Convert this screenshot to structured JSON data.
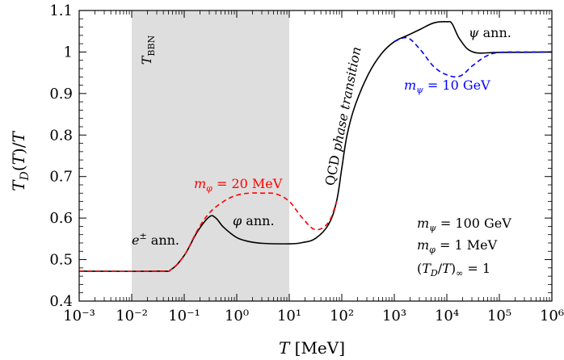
{
  "chart_data": {
    "type": "line",
    "xscale": "log",
    "xlim": [
      0.001,
      1000000
    ],
    "ylim": [
      0.4,
      1.1
    ],
    "xlabel": "T [MeV]",
    "ylabel": "T_D(T)/T",
    "grid": false,
    "xticks": [
      0.001,
      0.01,
      0.1,
      1,
      10,
      100,
      1000,
      10000,
      100000,
      1000000
    ],
    "xtick_labels": [
      "10⁻³",
      "10⁻²",
      "10⁻¹",
      "10⁰",
      "10¹",
      "10²",
      "10³",
      "10⁴",
      "10⁵",
      "10⁶"
    ],
    "yticks": [
      0.4,
      0.5,
      0.6,
      0.7,
      0.8,
      0.9,
      1.0,
      1.1
    ],
    "ytick_labels": [
      "0.4",
      "0.5",
      "0.6",
      "0.7",
      "0.8",
      "0.9",
      "1",
      "1.1"
    ],
    "shaded_band": {
      "x_from": 0.01,
      "x_to": 10,
      "label": "T_BBN",
      "color": "#dedede"
    },
    "series": [
      {
        "name": "",
        "style": "solid",
        "color": "#000000",
        "points": [
          [
            0.001,
            0.472
          ],
          [
            0.0316,
            0.472
          ],
          [
            0.0562,
            0.476
          ],
          [
            0.1,
            0.51
          ],
          [
            0.178,
            0.567
          ],
          [
            0.3,
            0.603
          ],
          [
            0.4,
            0.6
          ],
          [
            0.56,
            0.578
          ],
          [
            1,
            0.553
          ],
          [
            1.78,
            0.543
          ],
          [
            3.16,
            0.539
          ],
          [
            10,
            0.538
          ],
          [
            17.8,
            0.541
          ],
          [
            31.6,
            0.551
          ],
          [
            56.2,
            0.585
          ],
          [
            79.4,
            0.64
          ],
          [
            100,
            0.72
          ],
          [
            126,
            0.8
          ],
          [
            178,
            0.87
          ],
          [
            316,
            0.945
          ],
          [
            562,
            0.995
          ],
          [
            1000,
            1.025
          ],
          [
            1780,
            1.04
          ],
          [
            3160,
            1.055
          ],
          [
            5620,
            1.07
          ],
          [
            10000,
            1.073
          ],
          [
            12600,
            1.068
          ],
          [
            17800,
            1.03
          ],
          [
            31600,
            1.0
          ],
          [
            100000,
            0.999
          ],
          [
            1000000,
            1.0
          ]
        ]
      },
      {
        "name": "m_φ = 20 MeV",
        "style": "dashed",
        "color": "#ff0000",
        "points": [
          [
            0.001,
            0.472
          ],
          [
            0.0316,
            0.472
          ],
          [
            0.0562,
            0.476
          ],
          [
            0.1,
            0.51
          ],
          [
            0.178,
            0.57
          ],
          [
            0.3,
            0.612
          ],
          [
            0.562,
            0.64
          ],
          [
            1,
            0.655
          ],
          [
            1.78,
            0.66
          ],
          [
            3.16,
            0.66
          ],
          [
            5.62,
            0.658
          ],
          [
            10,
            0.64
          ],
          [
            17.8,
            0.6
          ],
          [
            31.6,
            0.572
          ],
          [
            56.2,
            0.59
          ],
          [
            79.4,
            0.64
          ]
        ]
      },
      {
        "name": "m_ψ = 10 GeV",
        "style": "dashed",
        "color": "#0000ff",
        "points": [
          [
            1000,
            1.025
          ],
          [
            1780,
            1.034
          ],
          [
            3160,
            1.005
          ],
          [
            5620,
            0.965
          ],
          [
            10000,
            0.945
          ],
          [
            17800,
            0.942
          ],
          [
            31600,
            0.968
          ],
          [
            56200,
            0.99
          ],
          [
            100000,
            0.999
          ],
          [
            316000,
            1.0
          ],
          [
            1000000,
            1.0
          ]
        ]
      }
    ],
    "annotations": {
      "e_ann": "e± ann.",
      "phi_ann": "φ ann.",
      "psi_ann": "ψ ann.",
      "qcd": "QCD phase transition",
      "m_phi_20": "m_φ = 20 MeV",
      "m_psi_10": "m_ψ = 10 GeV",
      "legend_lines": [
        "m_ψ = 100 GeV",
        "m_φ = 1 MeV",
        "(T_D/T)_∞ = 1"
      ]
    }
  }
}
